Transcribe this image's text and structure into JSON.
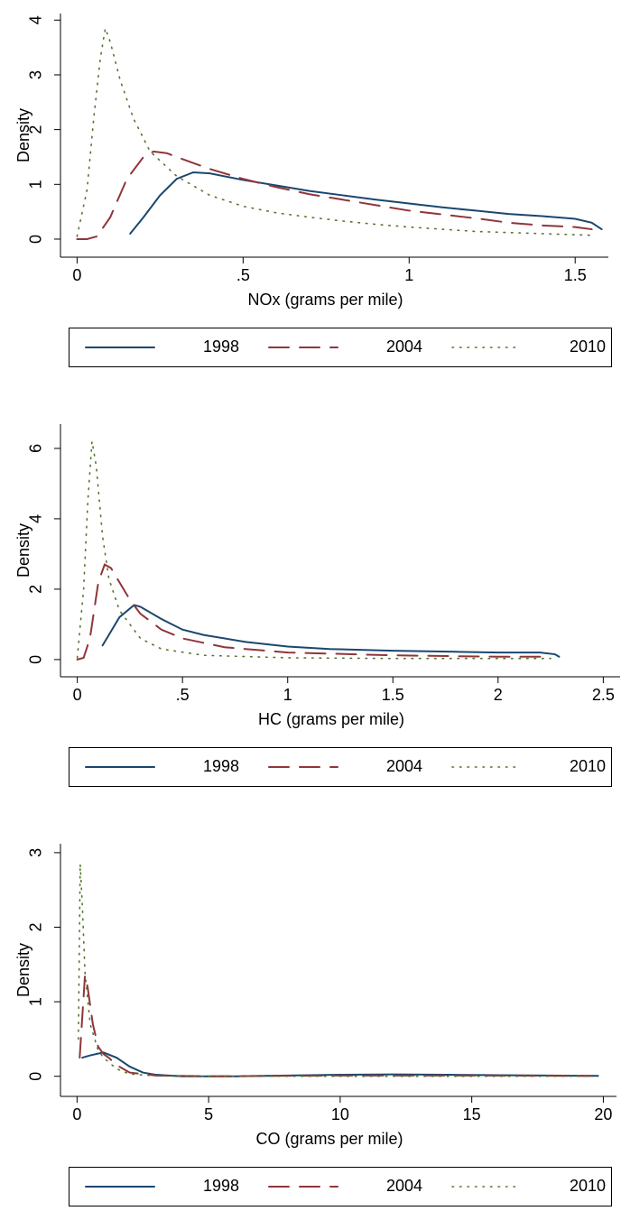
{
  "chart_data": [
    {
      "type": "line",
      "x_label": "NOx (grams per mile)",
      "y_label": "Density",
      "xlim": [
        -0.05,
        1.6
      ],
      "ylim": [
        -0.33,
        4.12
      ],
      "xticks": [
        0,
        {
          "value": 0.5,
          "label": ".5"
        },
        1,
        1.5
      ],
      "yticks": [
        0,
        1,
        2,
        3,
        4
      ],
      "legend": "bottom",
      "series": [
        {
          "name": "1998",
          "color": "#1a476f",
          "style": "solid",
          "x": [
            0.16,
            0.2,
            0.25,
            0.3,
            0.35,
            0.4,
            0.5,
            0.6,
            0.7,
            0.8,
            0.9,
            1.0,
            1.1,
            1.2,
            1.3,
            1.4,
            1.5,
            1.55,
            1.58
          ],
          "values": [
            0.1,
            0.4,
            0.8,
            1.1,
            1.22,
            1.2,
            1.08,
            0.98,
            0.88,
            0.8,
            0.72,
            0.65,
            0.58,
            0.52,
            0.46,
            0.42,
            0.37,
            0.3,
            0.18
          ]
        },
        {
          "name": "2004",
          "color": "#90353b",
          "style": "dash",
          "x": [
            0,
            0.03,
            0.06,
            0.1,
            0.15,
            0.2,
            0.23,
            0.27,
            0.3,
            0.4,
            0.5,
            0.6,
            0.7,
            0.8,
            0.9,
            1.0,
            1.1,
            1.2,
            1.3,
            1.4,
            1.5,
            1.55
          ],
          "values": [
            0,
            0,
            0.05,
            0.4,
            1.1,
            1.5,
            1.6,
            1.57,
            1.5,
            1.28,
            1.1,
            0.95,
            0.82,
            0.72,
            0.62,
            0.52,
            0.45,
            0.38,
            0.3,
            0.25,
            0.22,
            0.18
          ]
        },
        {
          "name": "2010",
          "color": "#55752f",
          "style": "dot",
          "x": [
            0,
            0.03,
            0.05,
            0.07,
            0.085,
            0.1,
            0.13,
            0.17,
            0.22,
            0.3,
            0.4,
            0.5,
            0.6,
            0.7,
            0.8,
            0.9,
            1.0,
            1.1,
            1.2,
            1.3,
            1.4,
            1.5,
            1.55
          ],
          "values": [
            0.05,
            0.9,
            2.2,
            3.3,
            3.85,
            3.6,
            2.9,
            2.2,
            1.6,
            1.15,
            0.8,
            0.6,
            0.48,
            0.4,
            0.33,
            0.27,
            0.22,
            0.18,
            0.14,
            0.12,
            0.1,
            0.08,
            0.07
          ]
        }
      ]
    },
    {
      "type": "line",
      "x_label": "HC (grams per mile)",
      "y_label": "Density",
      "xlim": [
        -0.08,
        2.58
      ],
      "ylim": [
        -0.49,
        6.69
      ],
      "xticks": [
        0,
        {
          "value": 0.5,
          "label": ".5"
        },
        1,
        1.5,
        2,
        2.5
      ],
      "yticks": [
        0,
        2,
        4,
        6
      ],
      "legend": "bottom",
      "series": [
        {
          "name": "1998",
          "color": "#1a476f",
          "style": "solid",
          "x": [
            0.12,
            0.15,
            0.2,
            0.27,
            0.3,
            0.4,
            0.5,
            0.6,
            0.8,
            1.0,
            1.2,
            1.5,
            1.8,
            2.0,
            2.2,
            2.27,
            2.29
          ],
          "values": [
            0.4,
            0.7,
            1.2,
            1.55,
            1.5,
            1.15,
            0.85,
            0.7,
            0.5,
            0.37,
            0.3,
            0.25,
            0.22,
            0.2,
            0.2,
            0.15,
            0.08
          ]
        },
        {
          "name": "2004",
          "color": "#90353b",
          "style": "dash",
          "x": [
            0,
            0.03,
            0.06,
            0.1,
            0.13,
            0.16,
            0.2,
            0.25,
            0.3,
            0.4,
            0.5,
            0.7,
            1.0,
            1.5,
            2.0,
            2.2
          ],
          "values": [
            0,
            0.05,
            0.6,
            2.2,
            2.7,
            2.6,
            2.2,
            1.7,
            1.3,
            0.85,
            0.6,
            0.35,
            0.2,
            0.12,
            0.08,
            0.08
          ]
        },
        {
          "name": "2010",
          "color": "#55752f",
          "style": "dot",
          "x": [
            0,
            0.03,
            0.05,
            0.07,
            0.09,
            0.12,
            0.15,
            0.2,
            0.3,
            0.4,
            0.6,
            1.0,
            1.5,
            2.0,
            2.25
          ],
          "values": [
            0.05,
            2,
            4.5,
            6.2,
            5.5,
            3.5,
            2.3,
            1.4,
            0.6,
            0.3,
            0.12,
            0.05,
            0.03,
            0.03,
            0.03
          ]
        }
      ]
    },
    {
      "type": "line",
      "x_label": "CO (grams per mile)",
      "y_label": "Density",
      "xlim": [
        -0.63,
        20.5
      ],
      "ylim": [
        -0.27,
        3.12
      ],
      "xticks": [
        0,
        5,
        10,
        15,
        20
      ],
      "yticks": [
        0,
        1,
        2,
        3
      ],
      "legend": "bottom",
      "series": [
        {
          "name": "1998",
          "color": "#1a476f",
          "style": "solid",
          "x": [
            0.2,
            0.5,
            1,
            1.5,
            2,
            2.5,
            3,
            4,
            6,
            8,
            10,
            12,
            14,
            16,
            18,
            19.8
          ],
          "values": [
            0.25,
            0.28,
            0.32,
            0.25,
            0.13,
            0.05,
            0.02,
            0,
            0,
            0.01,
            0.02,
            0.025,
            0.02,
            0.015,
            0.01,
            0.005
          ]
        },
        {
          "name": "2004",
          "color": "#90353b",
          "style": "dash",
          "x": [
            0.1,
            0.2,
            0.3,
            0.4,
            0.6,
            0.8,
            1,
            1.2,
            1.5,
            2,
            3,
            5,
            10,
            15,
            19.5
          ],
          "values": [
            0.25,
            0.8,
            1.35,
            1.2,
            0.7,
            0.4,
            0.3,
            0.25,
            0.15,
            0.05,
            0.01,
            0,
            0.01,
            0.01,
            0.005
          ]
        },
        {
          "name": "2010",
          "color": "#55752f",
          "style": "dot",
          "x": [
            0.05,
            0.12,
            0.2,
            0.3,
            0.5,
            0.8,
            1,
            1.5,
            2,
            3,
            5,
            10,
            19.5
          ],
          "values": [
            0.5,
            2.85,
            2.3,
            1.4,
            0.7,
            0.35,
            0.25,
            0.1,
            0.03,
            0.005,
            0,
            0,
            0
          ]
        }
      ]
    }
  ]
}
